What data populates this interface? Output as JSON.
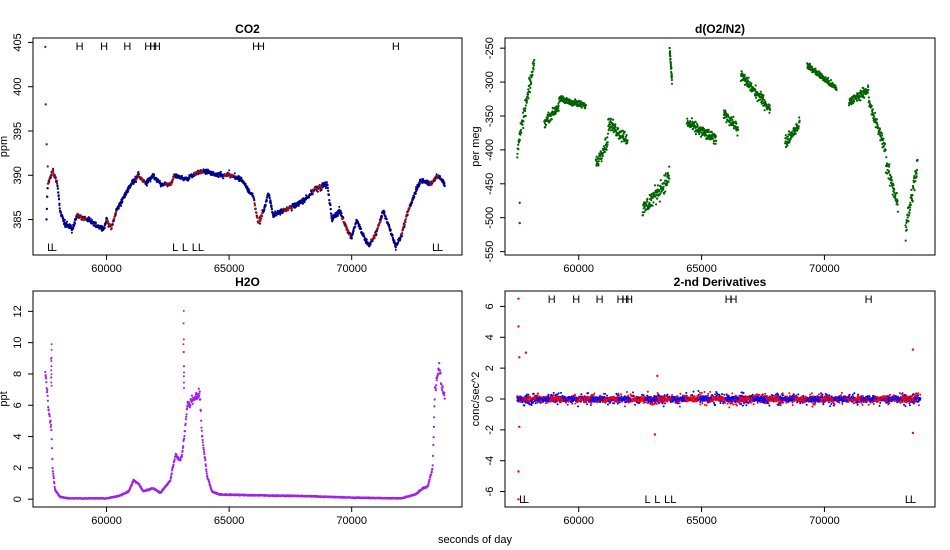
{
  "figure": {
    "xlabel": "seconds of day"
  },
  "colors": {
    "dark_blue": "#00008b",
    "dark_red": "#a01010",
    "green": "#006400",
    "purple": "#a020f0",
    "red": "#ff0000",
    "blue": "#0000ff"
  },
  "chart_data": [
    {
      "id": "co2",
      "type": "scatter",
      "title": "CO2",
      "ylabel": "ppm",
      "xlim": [
        57000,
        74500
      ],
      "ylim": [
        381,
        405.5
      ],
      "xticks": [
        60000,
        65000,
        70000
      ],
      "xtick_labels": [
        "60000",
        "65000",
        "70000"
      ],
      "yticks": [
        385,
        390,
        395,
        400,
        405
      ],
      "ytick_labels": [
        "385",
        "390",
        "395",
        "400",
        "405"
      ],
      "colors": [
        "#00008b",
        "#a01010"
      ],
      "high_markers": [
        {
          "x": 58900,
          "label": "H"
        },
        {
          "x": 59900,
          "label": "H"
        },
        {
          "x": 60850,
          "label": "H"
        },
        {
          "x": 61700,
          "label": "H"
        },
        {
          "x": 61900,
          "label": "H"
        },
        {
          "x": 62050,
          "label": "H"
        },
        {
          "x": 66100,
          "label": "H"
        },
        {
          "x": 66300,
          "label": "H"
        },
        {
          "x": 71800,
          "label": "H"
        }
      ],
      "low_markers": [
        {
          "x": 57700,
          "label": "L"
        },
        {
          "x": 57850,
          "label": "L"
        },
        {
          "x": 62800,
          "label": "L"
        },
        {
          "x": 63200,
          "label": "L"
        },
        {
          "x": 63600,
          "label": "L"
        },
        {
          "x": 63850,
          "label": "L"
        },
        {
          "x": 73400,
          "label": "L"
        },
        {
          "x": 73600,
          "label": "L"
        }
      ],
      "trace": [
        [
          57550,
          385
        ],
        [
          57600,
          389
        ],
        [
          57800,
          390.5
        ],
        [
          58000,
          389
        ],
        [
          58100,
          386
        ],
        [
          58300,
          384.5
        ],
        [
          58600,
          384
        ],
        [
          58800,
          385.5
        ],
        [
          59200,
          385
        ],
        [
          59500,
          384.5
        ],
        [
          59900,
          384
        ],
        [
          60000,
          385
        ],
        [
          60200,
          384
        ],
        [
          60400,
          386
        ],
        [
          60800,
          388
        ],
        [
          61000,
          389
        ],
        [
          61300,
          390
        ],
        [
          61600,
          389
        ],
        [
          61900,
          390
        ],
        [
          62200,
          389
        ],
        [
          62600,
          389
        ],
        [
          62800,
          390
        ],
        [
          63200,
          389.5
        ],
        [
          63500,
          390
        ],
        [
          64000,
          390.5
        ],
        [
          64500,
          390
        ],
        [
          65000,
          390
        ],
        [
          65500,
          389.5
        ],
        [
          66000,
          387.5
        ],
        [
          66200,
          384.5
        ],
        [
          66400,
          386
        ],
        [
          66600,
          388
        ],
        [
          66800,
          385.5
        ],
        [
          67200,
          386
        ],
        [
          67600,
          386.5
        ],
        [
          68000,
          387
        ],
        [
          68200,
          387.5
        ],
        [
          68500,
          388.5
        ],
        [
          69000,
          389
        ],
        [
          69200,
          385
        ],
        [
          69500,
          386
        ],
        [
          69800,
          384
        ],
        [
          70000,
          383
        ],
        [
          70200,
          385
        ],
        [
          70500,
          383
        ],
        [
          70700,
          382
        ],
        [
          71000,
          383.5
        ],
        [
          71300,
          386
        ],
        [
          71600,
          383.5
        ],
        [
          71800,
          382
        ],
        [
          72000,
          383
        ],
        [
          72300,
          386
        ],
        [
          72600,
          388
        ],
        [
          72800,
          389.5
        ],
        [
          73200,
          389
        ],
        [
          73500,
          390
        ],
        [
          73800,
          389
        ]
      ],
      "spike": [
        [
          57500,
          404.5
        ],
        [
          57520,
          398
        ],
        [
          57560,
          393.5
        ],
        [
          57600,
          391
        ]
      ]
    },
    {
      "id": "do2n2",
      "type": "scatter",
      "title": "d(O2/N2)",
      "ylabel": "per meg",
      "xlim": [
        57000,
        74500
      ],
      "ylim": [
        -555,
        -235
      ],
      "xticks": [
        60000,
        65000,
        70000
      ],
      "xtick_labels": [
        "60000",
        "65000",
        "70000"
      ],
      "yticks": [
        -550,
        -500,
        -450,
        -400,
        -350,
        -300,
        -250
      ],
      "ytick_labels": [
        "-550",
        "-500",
        "-450",
        "-400",
        "-350",
        "-300",
        "-250"
      ],
      "colors": [
        "#006400"
      ],
      "segments": [
        {
          "x0": 57500,
          "x1": 58200,
          "y0": -400,
          "y1": -270,
          "spread": 35
        },
        {
          "x0": 58600,
          "x1": 59200,
          "y0": -360,
          "y1": -335,
          "spread": 20
        },
        {
          "x0": 59200,
          "x1": 60300,
          "y0": -325,
          "y1": -335,
          "spread": 15
        },
        {
          "x0": 60700,
          "x1": 61200,
          "y0": -420,
          "y1": -385,
          "spread": 30
        },
        {
          "x0": 61200,
          "x1": 62000,
          "y0": -360,
          "y1": -385,
          "spread": 30
        },
        {
          "x0": 62600,
          "x1": 63700,
          "y0": -490,
          "y1": -440,
          "spread": 40
        },
        {
          "x0": 63700,
          "x1": 63800,
          "y0": -250,
          "y1": -300,
          "spread": 20
        },
        {
          "x0": 64400,
          "x1": 65600,
          "y0": -360,
          "y1": -385,
          "spread": 25
        },
        {
          "x0": 65900,
          "x1": 66500,
          "y0": -345,
          "y1": -370,
          "spread": 25
        },
        {
          "x0": 66600,
          "x1": 67800,
          "y0": -290,
          "y1": -340,
          "spread": 25
        },
        {
          "x0": 68400,
          "x1": 69000,
          "y0": -390,
          "y1": -360,
          "spread": 25
        },
        {
          "x0": 69300,
          "x1": 70500,
          "y0": -275,
          "y1": -310,
          "spread": 15
        },
        {
          "x0": 71000,
          "x1": 71800,
          "y0": -330,
          "y1": -310,
          "spread": 20
        },
        {
          "x0": 71800,
          "x1": 72500,
          "y0": -330,
          "y1": -400,
          "spread": 30
        },
        {
          "x0": 72500,
          "x1": 73000,
          "y0": -420,
          "y1": -480,
          "spread": 40
        },
        {
          "x0": 73300,
          "x1": 73800,
          "y0": -520,
          "y1": -420,
          "spread": 50
        }
      ],
      "isolated": [
        [
          57600,
          -478
        ],
        [
          57600,
          -508
        ]
      ]
    },
    {
      "id": "h2o",
      "type": "scatter",
      "title": "H2O",
      "ylabel": "ppt",
      "xlim": [
        57000,
        74500
      ],
      "ylim": [
        -0.5,
        13.3
      ],
      "xticks": [
        60000,
        65000,
        70000
      ],
      "xtick_labels": [
        "60000",
        "65000",
        "70000"
      ],
      "yticks": [
        0,
        2,
        4,
        6,
        8,
        10,
        12
      ],
      "ytick_labels": [
        "0",
        "2",
        "4",
        "6",
        "8",
        "10",
        "12"
      ],
      "colors": [
        "#a020f0"
      ],
      "trace": [
        [
          57500,
          8.2
        ],
        [
          57650,
          5.5
        ],
        [
          57750,
          4.5
        ],
        [
          57800,
          2
        ],
        [
          57900,
          0.6
        ],
        [
          58100,
          0.15
        ],
        [
          58500,
          0.05
        ],
        [
          60000,
          0.05
        ],
        [
          60500,
          0.2
        ],
        [
          60900,
          0.5
        ],
        [
          61100,
          1.2
        ],
        [
          61300,
          1
        ],
        [
          61500,
          0.5
        ],
        [
          61900,
          0.7
        ],
        [
          62200,
          0.4
        ],
        [
          62600,
          1.2
        ],
        [
          62800,
          2.8
        ],
        [
          63000,
          2.5
        ],
        [
          63100,
          3
        ],
        [
          63300,
          6
        ],
        [
          63600,
          6.5
        ],
        [
          63800,
          6.8
        ],
        [
          63900,
          4
        ],
        [
          64100,
          1.5
        ],
        [
          64300,
          0.5
        ],
        [
          64600,
          0.3
        ],
        [
          66000,
          0.25
        ],
        [
          68000,
          0.2
        ],
        [
          70000,
          0.1
        ],
        [
          72000,
          0.05
        ],
        [
          72600,
          0.3
        ],
        [
          72900,
          0.7
        ],
        [
          73100,
          0.8
        ],
        [
          73300,
          2
        ],
        [
          73400,
          7
        ],
        [
          73550,
          8.5
        ],
        [
          73700,
          7
        ],
        [
          73800,
          6.6
        ]
      ],
      "spike": [
        [
          57750,
          10
        ],
        [
          63150,
          13
        ]
      ]
    },
    {
      "id": "deriv",
      "type": "scatter",
      "title": "2-nd Derivatives",
      "ylabel": "conc/sec^2",
      "xlim": [
        57000,
        74500
      ],
      "ylim": [
        -7,
        7
      ],
      "xticks": [
        60000,
        65000,
        70000
      ],
      "xtick_labels": [
        "60000",
        "65000",
        "70000"
      ],
      "yticks": [
        -6,
        -4,
        -2,
        0,
        2,
        4,
        6
      ],
      "ytick_labels": [
        "-6",
        "-4",
        "-2",
        "0",
        "2",
        "4",
        "6"
      ],
      "colors": [
        "#ff0000",
        "#0000ff"
      ],
      "high_markers": [
        {
          "x": 58900,
          "label": "H"
        },
        {
          "x": 59900,
          "label": "H"
        },
        {
          "x": 60850,
          "label": "H"
        },
        {
          "x": 61700,
          "label": "H"
        },
        {
          "x": 61900,
          "label": "H"
        },
        {
          "x": 62050,
          "label": "H"
        },
        {
          "x": 66100,
          "label": "H"
        },
        {
          "x": 66300,
          "label": "H"
        },
        {
          "x": 71800,
          "label": "H"
        }
      ],
      "low_markers": [
        {
          "x": 57700,
          "label": "L"
        },
        {
          "x": 57850,
          "label": "L"
        },
        {
          "x": 62800,
          "label": "L"
        },
        {
          "x": 63200,
          "label": "L"
        },
        {
          "x": 63600,
          "label": "L"
        },
        {
          "x": 63850,
          "label": "L"
        },
        {
          "x": 73400,
          "label": "L"
        },
        {
          "x": 73600,
          "label": "L"
        }
      ],
      "band": {
        "x0": 57500,
        "x1": 73900,
        "spread": 0.6
      },
      "isolated": [
        [
          57550,
          6.5
        ],
        [
          57550,
          4.7
        ],
        [
          57580,
          2.7
        ],
        [
          57580,
          -1.8
        ],
        [
          57550,
          -4.7
        ],
        [
          57550,
          -6.5
        ],
        [
          57850,
          3.0
        ],
        [
          63100,
          -2.3
        ],
        [
          63200,
          1.5
        ],
        [
          73600,
          3.2
        ],
        [
          73600,
          -2.2
        ]
      ]
    }
  ]
}
